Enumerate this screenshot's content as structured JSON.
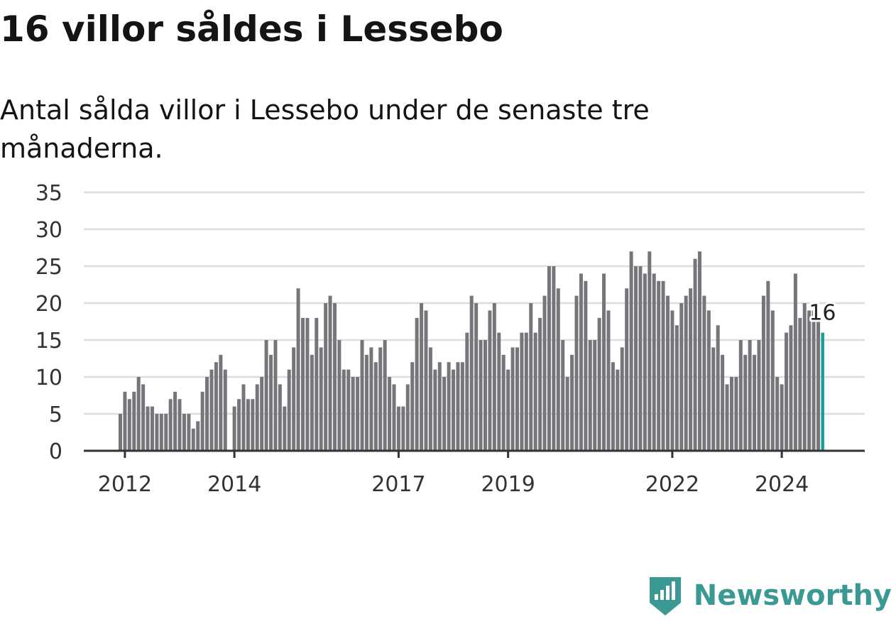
{
  "title": "16 villor såldes i Lessebo",
  "subtitle": "Antal sålda villor i Lessebo under de senaste tre månaderna.",
  "brand": {
    "name": "Newsworthy",
    "icon": "newsworthy-logo-icon"
  },
  "colors": {
    "bar": "#76757a",
    "highlight": "#1a9e98",
    "grid": "#dddddd",
    "axis": "#333333",
    "brand": "#3a9993"
  },
  "chart_data": {
    "type": "bar",
    "title": "16 villor såldes i Lessebo",
    "xlabel": "",
    "ylabel": "",
    "ylim": [
      0,
      35
    ],
    "y_ticks": [
      0,
      5,
      10,
      15,
      20,
      25,
      30,
      35
    ],
    "x_ticks": [
      "2012",
      "2014",
      "2017",
      "2019",
      "2022",
      "2024"
    ],
    "grid": true,
    "highlight_last": true,
    "last_label": "16",
    "first_period": "2011-12",
    "values": [
      5,
      8,
      7,
      8,
      10,
      9,
      6,
      6,
      5,
      5,
      5,
      7,
      8,
      7,
      5,
      5,
      3,
      4,
      8,
      10,
      11,
      12,
      13,
      11,
      0,
      6,
      7,
      9,
      7,
      7,
      9,
      10,
      15,
      13,
      15,
      9,
      6,
      11,
      14,
      22,
      18,
      18,
      13,
      18,
      14,
      20,
      21,
      20,
      15,
      11,
      11,
      10,
      10,
      15,
      13,
      14,
      12,
      14,
      15,
      10,
      9,
      6,
      6,
      9,
      12,
      18,
      20,
      19,
      14,
      11,
      12,
      10,
      12,
      11,
      12,
      12,
      16,
      21,
      20,
      15,
      15,
      19,
      20,
      16,
      13,
      11,
      14,
      14,
      16,
      16,
      20,
      16,
      18,
      21,
      25,
      25,
      22,
      15,
      10,
      13,
      21,
      24,
      23,
      15,
      15,
      18,
      24,
      19,
      12,
      11,
      14,
      22,
      27,
      25,
      25,
      24,
      27,
      24,
      23,
      23,
      21,
      19,
      17,
      20,
      21,
      22,
      26,
      27,
      21,
      19,
      14,
      17,
      13,
      9,
      10,
      10,
      15,
      13,
      15,
      13,
      15,
      21,
      23,
      19,
      10,
      9,
      16,
      17,
      24,
      18,
      20,
      19,
      19,
      18,
      16
    ]
  }
}
